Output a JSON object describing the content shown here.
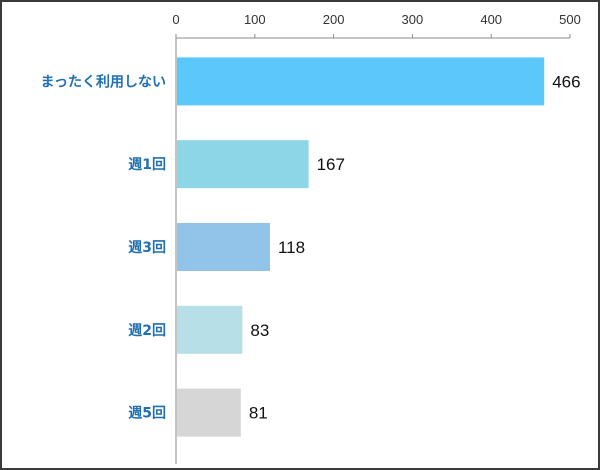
{
  "chart_data": {
    "type": "bar",
    "orientation": "horizontal",
    "title": "",
    "xlabel": "",
    "ylabel": "",
    "xlim": [
      0,
      500
    ],
    "ticks": [
      0,
      100,
      200,
      300,
      400,
      500
    ],
    "tick_position": "top",
    "grid": false,
    "legend": "none",
    "categories": [
      "まったく利用しない",
      "週1回",
      "週3回",
      "週2回",
      "週5回"
    ],
    "values": [
      466,
      167,
      118,
      83,
      81
    ],
    "colors": [
      "#5bc8fb",
      "#8cd6e8",
      "#92c3e8",
      "#b7dfe7",
      "#d6d6d6"
    ],
    "category_label_color": "#1f6fb2"
  }
}
